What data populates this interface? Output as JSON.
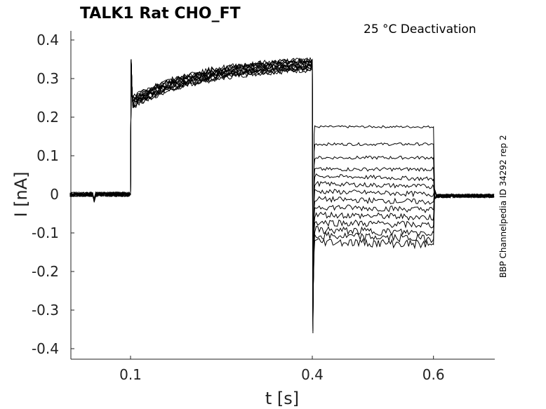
{
  "chart_data": {
    "type": "line",
    "title": "TALK1  Rat  CHO_FT",
    "annotation": "25 °C  Deactivation",
    "side_label": "BBP Channelpedia ID 34292 rep 2",
    "xlabel": "t [s]",
    "ylabel": "I [nA]",
    "xlim": [
      -0.0,
      0.7
    ],
    "ylim": [
      -0.43,
      0.43
    ],
    "xticks": [
      0.1,
      0.4,
      0.6
    ],
    "xtick_labels": [
      "0.1",
      "0.4",
      "0.6"
    ],
    "yticks": [
      0.4,
      0.3,
      0.2,
      0.1,
      0,
      -0.1,
      -0.2,
      -0.3,
      -0.4
    ],
    "ytick_labels": [
      "0.4",
      "0.3",
      "0.2",
      "0.1",
      "0",
      "-0.1",
      "-0.2",
      "-0.3",
      "-0.4"
    ],
    "grid": false,
    "line_color": "#000000",
    "protocol": {
      "holding_current": 0.0,
      "step1_start": 0.1,
      "step1_end": 0.4,
      "step1_peak": 0.35,
      "step1_initial": 0.235,
      "step1_final": 0.335,
      "step2_end": 0.6,
      "step2_min": -0.36
    },
    "series_tail_levels": [
      0.175,
      0.13,
      0.095,
      0.065,
      0.04,
      0.02,
      0.0,
      -0.02,
      -0.04,
      -0.06,
      -0.08,
      -0.1,
      -0.115,
      -0.13
    ]
  }
}
